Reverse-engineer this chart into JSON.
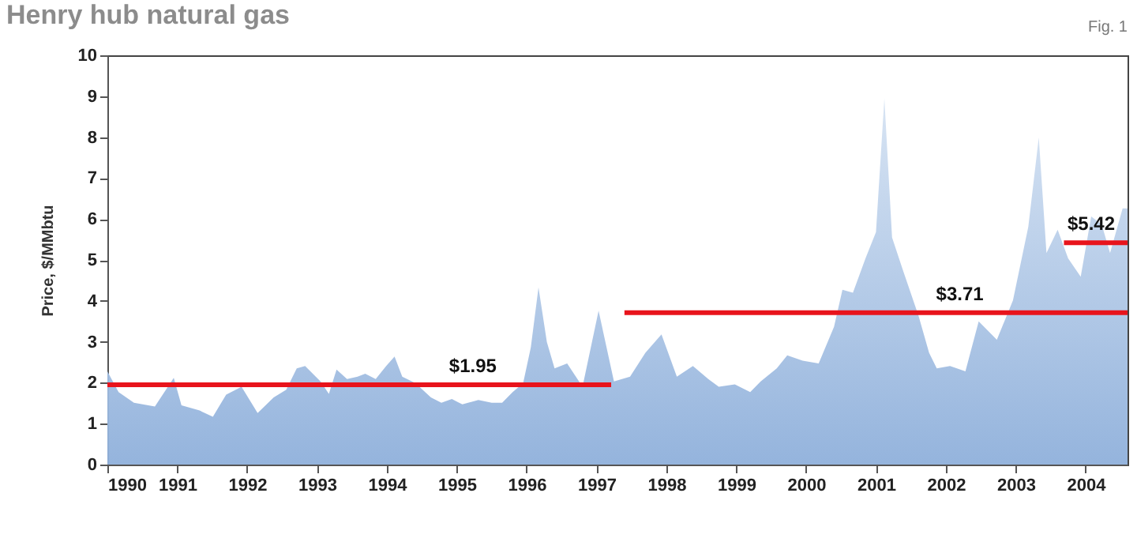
{
  "chart_data": {
    "type": "area",
    "title": "Henry hub natural gas",
    "ylabel": "Price, $/MMbtu",
    "xlim": [
      1990,
      2004.6
    ],
    "xticks": [
      1990,
      1991,
      1992,
      1993,
      1994,
      1995,
      1996,
      1997,
      1998,
      1999,
      2000,
      2001,
      2002,
      2003,
      2004
    ],
    "ylim": [
      0,
      10
    ],
    "yticks": [
      0,
      1,
      2,
      3,
      4,
      5,
      6,
      7,
      8,
      9,
      10
    ],
    "grid": false,
    "series": [
      {
        "color": "#8fb0db",
        "x": [
          1990.0,
          1990.16,
          1990.38,
          1990.68,
          1990.95,
          1991.06,
          1991.32,
          1991.51,
          1991.7,
          1991.92,
          1992.15,
          1992.38,
          1992.56,
          1992.71,
          1992.83,
          1993.05,
          1993.17,
          1993.28,
          1993.43,
          1993.58,
          1993.69,
          1993.84,
          1993.99,
          1994.11,
          1994.22,
          1994.41,
          1994.63,
          1994.78,
          1994.93,
          1995.08,
          1995.31,
          1995.5,
          1995.65,
          1995.8,
          1995.95,
          1996.06,
          1996.17,
          1996.29,
          1996.4,
          1996.58,
          1996.8,
          1997.03,
          1997.25,
          1997.48,
          1997.7,
          1997.93,
          1998.15,
          1998.38,
          1998.6,
          1998.75,
          1998.98,
          1999.2,
          1999.35,
          1999.58,
          1999.73,
          1999.95,
          2000.18,
          2000.4,
          2000.52,
          2000.67,
          2000.85,
          2001.0,
          2001.12,
          2001.23,
          2001.38,
          2001.61,
          2001.76,
          2001.87,
          2002.06,
          2002.28,
          2002.47,
          2002.73,
          2002.96,
          2003.18,
          2003.33,
          2003.44,
          2003.6,
          2003.75,
          2003.93,
          2004.08,
          2004.23,
          2004.35,
          2004.53,
          2004.6
        ],
        "values": [
          2.28,
          1.77,
          1.51,
          1.42,
          2.12,
          1.45,
          1.32,
          1.17,
          1.71,
          1.9,
          1.26,
          1.64,
          1.83,
          2.35,
          2.41,
          2.03,
          1.73,
          2.32,
          2.09,
          2.15,
          2.22,
          2.09,
          2.41,
          2.64,
          2.15,
          1.99,
          1.64,
          1.51,
          1.6,
          1.47,
          1.58,
          1.51,
          1.51,
          1.77,
          1.99,
          2.86,
          4.33,
          2.99,
          2.35,
          2.47,
          1.9,
          3.76,
          2.03,
          2.15,
          2.73,
          3.18,
          2.15,
          2.41,
          2.09,
          1.9,
          1.96,
          1.77,
          2.03,
          2.35,
          2.67,
          2.54,
          2.47,
          3.37,
          4.27,
          4.2,
          5.04,
          5.68,
          8.95,
          5.55,
          4.78,
          3.63,
          2.73,
          2.35,
          2.41,
          2.28,
          3.5,
          3.05,
          4.01,
          5.81,
          7.99,
          5.17,
          5.74,
          5.04,
          4.59,
          6.06,
          5.87,
          5.17,
          6.26,
          6.26
        ]
      },
      {
        "type": "line",
        "color": "#e8141c",
        "x": [
          1990,
          1997.21
        ],
        "values": [
          1.95,
          1.95
        ]
      },
      {
        "type": "line",
        "color": "#e8141c",
        "x": [
          1997.4,
          2004.6
        ],
        "values": [
          3.71,
          3.71
        ]
      },
      {
        "type": "line",
        "color": "#e8141c",
        "x": [
          2003.69,
          2004.6
        ],
        "values": [
          5.42,
          5.42
        ]
      }
    ],
    "annotations": [
      {
        "text": "$1.95",
        "x": 1995.23,
        "y": 1.95
      },
      {
        "text": "$3.71",
        "x": 2002.2,
        "y": 3.71
      },
      {
        "text": "$5.42",
        "x": 2004.08,
        "y": 5.42
      },
      "Fig. 1"
    ]
  }
}
